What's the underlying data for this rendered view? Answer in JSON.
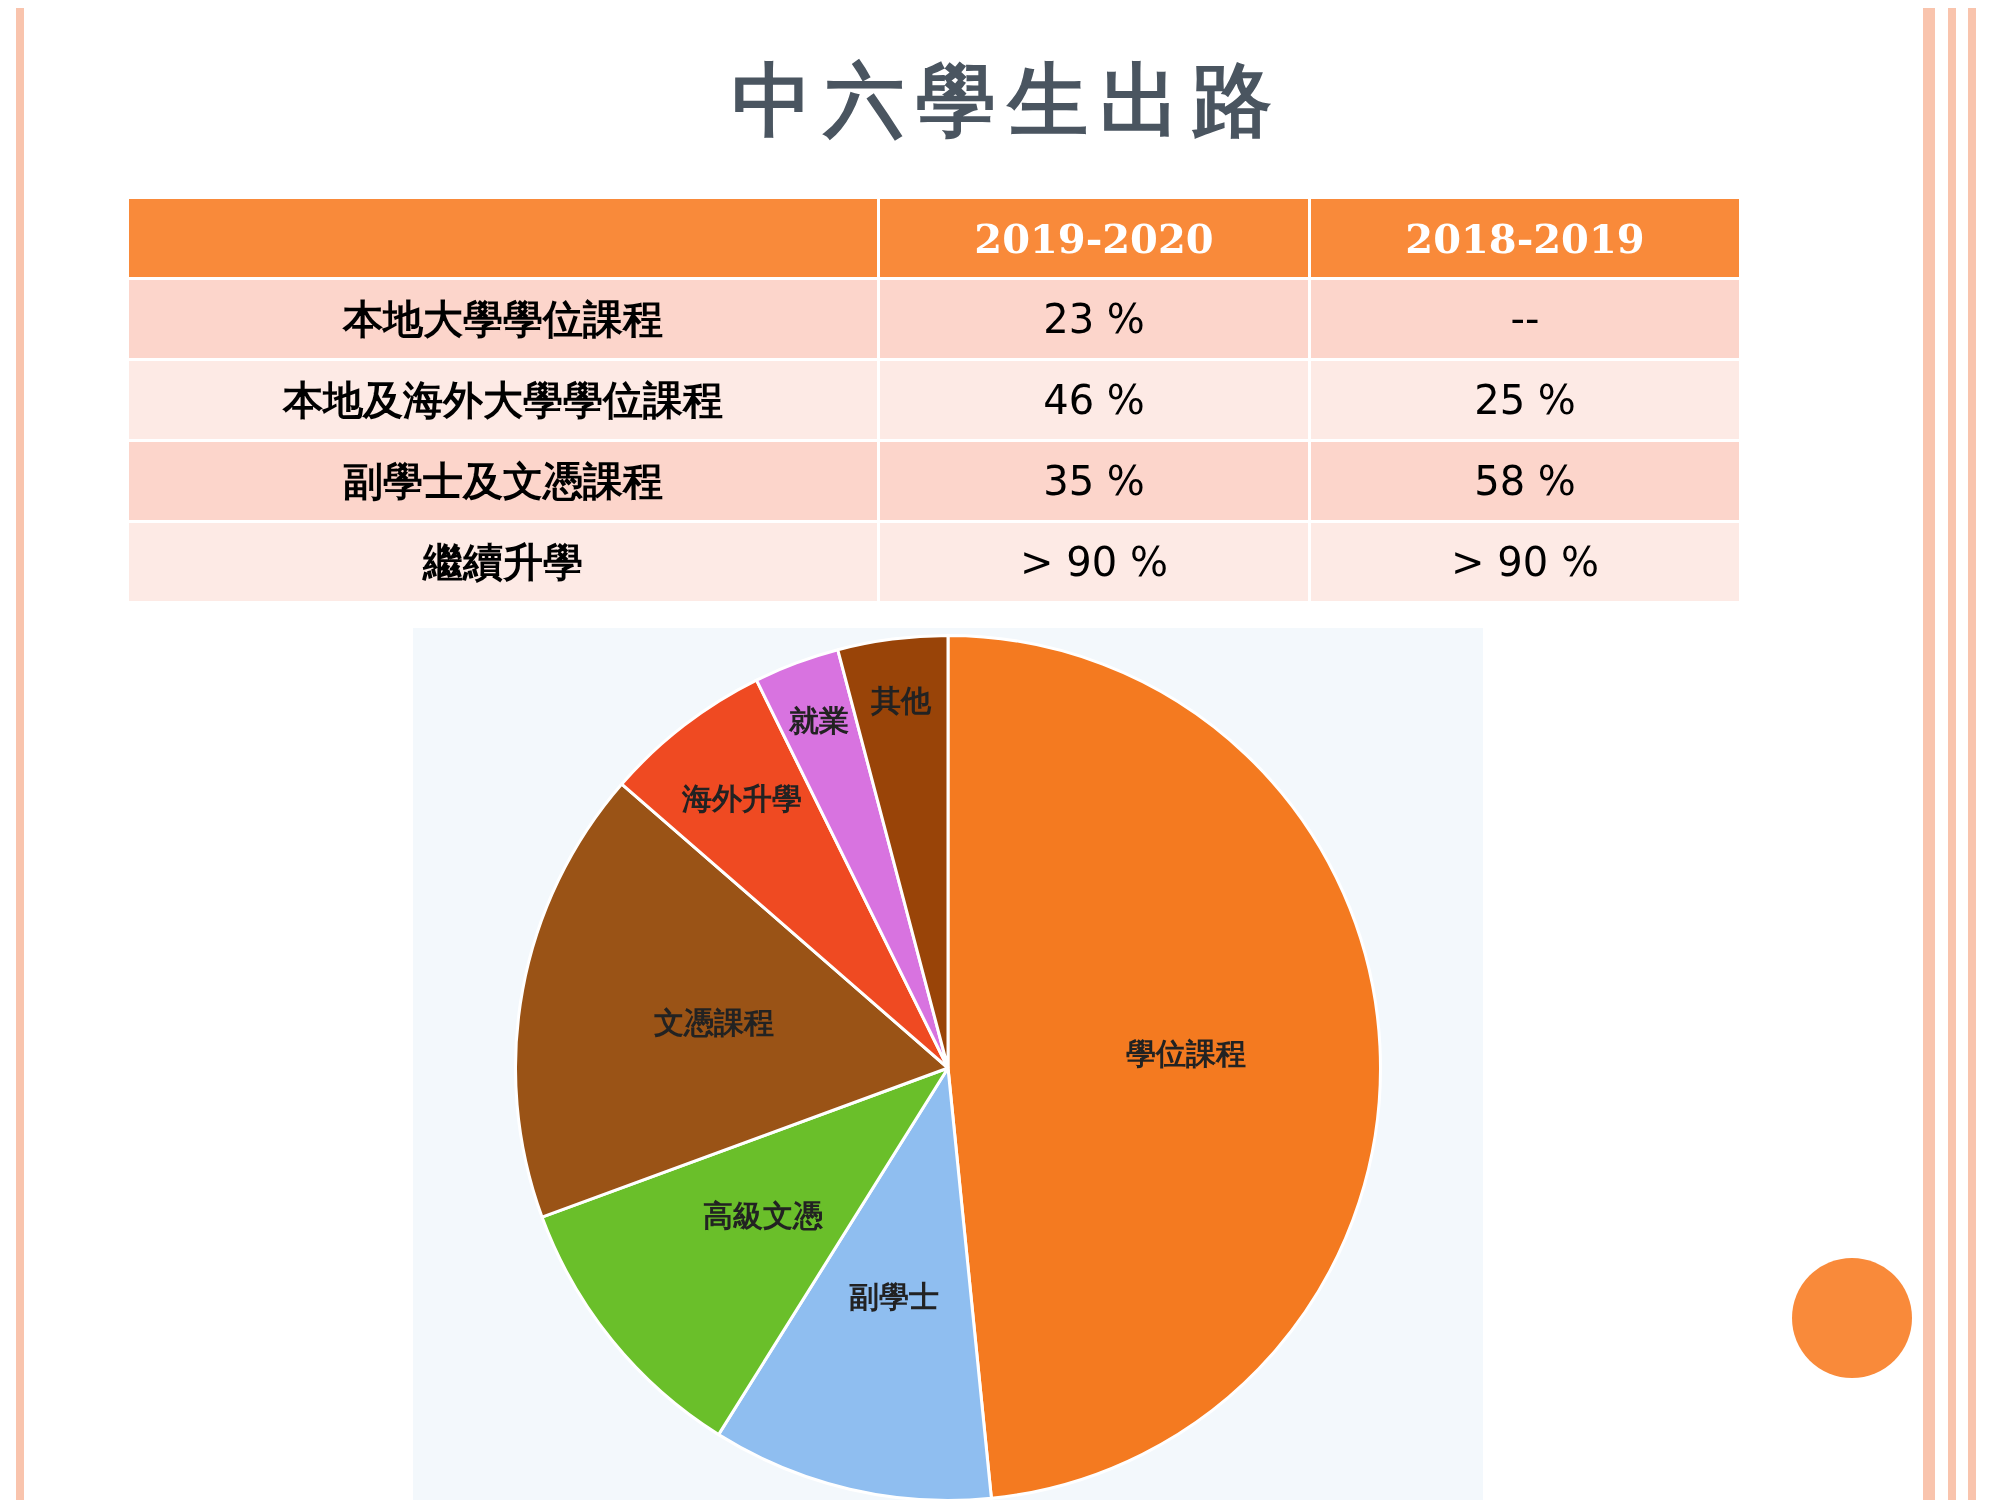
{
  "chart_data": [
    {
      "type": "other",
      "title": "中六學生出路",
      "categories": [
        "2019-2020",
        "2018-2019"
      ],
      "y_categories": [
        "本地大學學位課程",
        "本地及海外大學學位課程",
        "副學士及文憑課程",
        "繼續升學"
      ],
      "cell_labels": [
        [
          "23 %",
          "--"
        ],
        [
          "46 %",
          "25 %"
        ],
        [
          "35 %",
          "58 %"
        ],
        [
          "> 90 %",
          "> 90 %"
        ]
      ]
    },
    {
      "type": "pie",
      "categories": [
        "學位課程",
        "副學士",
        "高級文憑",
        "文憑課程",
        "海外升學",
        "就業",
        "其他"
      ],
      "values": [
        48.4,
        10.5,
        10.5,
        17,
        6.3,
        3.2,
        4.1
      ],
      "colors": [
        "#f47a20",
        "#8fbef0",
        "#6abf2a",
        "#9a5316",
        "#ef4a22",
        "#d873e0",
        "#994408"
      ],
      "legend": false
    }
  ]
}
